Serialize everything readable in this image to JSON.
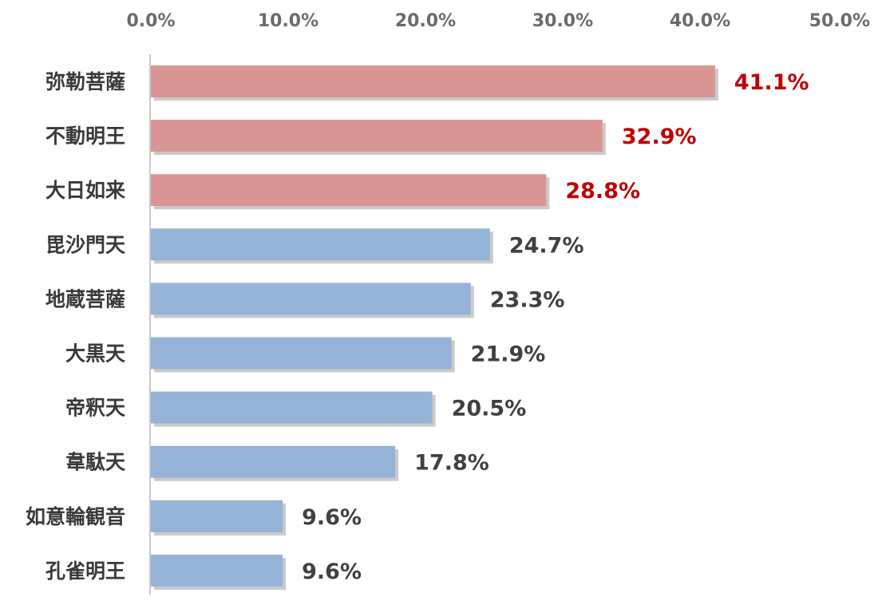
{
  "chart_data": {
    "type": "bar",
    "orientation": "horizontal",
    "title": "",
    "xlabel": "",
    "ylabel": "",
    "categories": [
      "弥勒菩薩",
      "不動明王",
      "大日如来",
      "毘沙門天",
      "地蔵菩薩",
      "大黒天",
      "帝釈天",
      "韋駄天",
      "如意輪観音",
      "孔雀明王"
    ],
    "values": [
      41.1,
      32.9,
      28.8,
      24.7,
      23.3,
      21.9,
      20.5,
      17.8,
      9.6,
      9.6
    ],
    "value_labels": [
      "41.1%",
      "32.9%",
      "28.8%",
      "24.7%",
      "23.3%",
      "21.9%",
      "20.5%",
      "17.8%",
      "9.6%",
      "9.6%"
    ],
    "highlighted": [
      true,
      true,
      true,
      false,
      false,
      false,
      false,
      false,
      false,
      false
    ],
    "xlim": [
      0,
      50
    ],
    "xticks": [
      0,
      10,
      20,
      30,
      40,
      50
    ],
    "xtick_labels": [
      "0.0%",
      "10.0%",
      "20.0%",
      "30.0%",
      "40.0%",
      "50.0%"
    ],
    "axis_position": "top",
    "grid": false,
    "legend": "none",
    "colors": {
      "highlight_bar": "#d99594",
      "normal_bar": "#95b3d7",
      "highlight_label": "#c00000",
      "normal_label": "#404040",
      "tick_label": "#6b6b6b",
      "category_label": "#3a3a3a",
      "axis_line": "#c8c8c8",
      "bar_shadow": "#b8b8b8"
    }
  }
}
